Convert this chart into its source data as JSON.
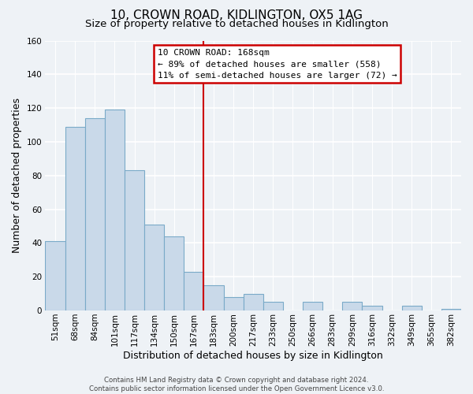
{
  "title": "10, CROWN ROAD, KIDLINGTON, OX5 1AG",
  "subtitle": "Size of property relative to detached houses in Kidlington",
  "xlabel": "Distribution of detached houses by size in Kidlington",
  "ylabel": "Number of detached properties",
  "bar_labels": [
    "51sqm",
    "68sqm",
    "84sqm",
    "101sqm",
    "117sqm",
    "134sqm",
    "150sqm",
    "167sqm",
    "183sqm",
    "200sqm",
    "217sqm",
    "233sqm",
    "250sqm",
    "266sqm",
    "283sqm",
    "299sqm",
    "316sqm",
    "332sqm",
    "349sqm",
    "365sqm",
    "382sqm"
  ],
  "bar_values": [
    41,
    109,
    114,
    119,
    83,
    51,
    44,
    23,
    15,
    8,
    10,
    5,
    0,
    5,
    0,
    5,
    3,
    0,
    3,
    0,
    1
  ],
  "bar_color": "#c9d9e9",
  "bar_edge_color": "#7aaac8",
  "vline_x_index": 7,
  "vline_color": "#cc0000",
  "ylim": [
    0,
    160
  ],
  "yticks": [
    0,
    20,
    40,
    60,
    80,
    100,
    120,
    140,
    160
  ],
  "annotation_title": "10 CROWN ROAD: 168sqm",
  "annotation_line1": "← 89% of detached houses are smaller (558)",
  "annotation_line2": "11% of semi-detached houses are larger (72) →",
  "annotation_box_color": "#ffffff",
  "annotation_box_edge": "#cc0000",
  "footer_line1": "Contains HM Land Registry data © Crown copyright and database right 2024.",
  "footer_line2": "Contains public sector information licensed under the Open Government Licence v3.0.",
  "background_color": "#eef2f6",
  "plot_background": "#eef2f6",
  "grid_color": "#ffffff",
  "title_fontsize": 11,
  "subtitle_fontsize": 9.5,
  "label_fontsize": 9,
  "tick_fontsize": 7.5,
  "footer_fontsize": 6.2
}
